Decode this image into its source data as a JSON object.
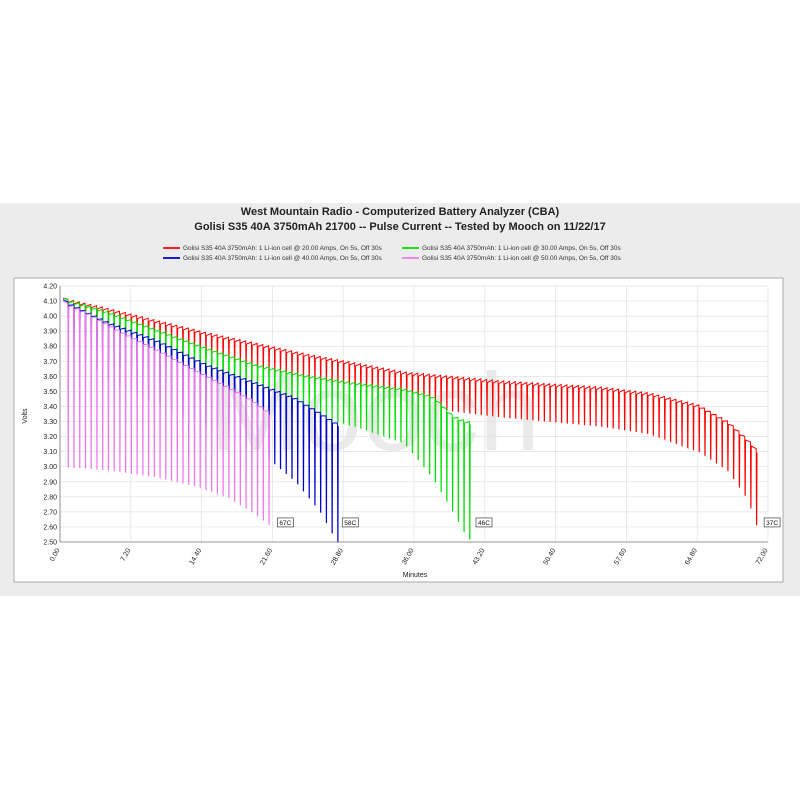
{
  "chart_data": {
    "type": "line",
    "title": "West Mountain Radio - Computerized Battery Analyzer (CBA)",
    "subtitle": "Golisi S35 40A 3750mAh 21700 -- Pulse Current -- Tested by Mooch on 11/22/17",
    "xlabel": "Minutes",
    "ylabel": "Volts",
    "xlim": [
      0,
      72
    ],
    "ylim": [
      2.5,
      4.2
    ],
    "x_ticks": [
      "0.00",
      "7.20",
      "14.40",
      "21.60",
      "28.80",
      "36.00",
      "43.20",
      "50.40",
      "57.60",
      "64.80",
      "72.00"
    ],
    "y_ticks": [
      "2.50",
      "2.60",
      "2.70",
      "2.80",
      "2.90",
      "3.00",
      "3.10",
      "3.20",
      "3.30",
      "3.40",
      "3.50",
      "3.60",
      "3.70",
      "3.80",
      "3.90",
      "4.00",
      "4.10",
      "4.20"
    ],
    "grid": true,
    "legend_position": "top",
    "watermark": "Mooch",
    "pulse": {
      "on_s": 5,
      "off_s": 30
    },
    "series": [
      {
        "name": "Golisi S35 40A 3750mAh: 1 Li-ion cell @ 20.00 Amps, On 5s, Off 30s",
        "color": "#ff0000",
        "end_label": "37C",
        "end_minute": 71.3,
        "rest_points": [
          [
            0.3,
            4.12
          ],
          [
            5,
            4.05
          ],
          [
            10,
            3.97
          ],
          [
            15,
            3.89
          ],
          [
            20,
            3.82
          ],
          [
            25,
            3.75
          ],
          [
            30,
            3.69
          ],
          [
            35,
            3.63
          ],
          [
            40,
            3.6
          ],
          [
            45,
            3.57
          ],
          [
            50,
            3.55
          ],
          [
            55,
            3.53
          ],
          [
            60,
            3.49
          ],
          [
            65,
            3.41
          ],
          [
            68,
            3.3
          ],
          [
            70,
            3.18
          ],
          [
            71.2,
            3.09
          ]
        ],
        "load_points": [
          [
            0.3,
            4.05
          ],
          [
            5,
            3.92
          ],
          [
            10,
            3.82
          ],
          [
            15,
            3.73
          ],
          [
            20,
            3.65
          ],
          [
            25,
            3.57
          ],
          [
            30,
            3.49
          ],
          [
            35,
            3.42
          ],
          [
            40,
            3.37
          ],
          [
            45,
            3.33
          ],
          [
            50,
            3.3
          ],
          [
            55,
            3.27
          ],
          [
            60,
            3.22
          ],
          [
            65,
            3.1
          ],
          [
            68,
            2.97
          ],
          [
            70,
            2.78
          ],
          [
            71.2,
            2.55
          ]
        ]
      },
      {
        "name": "Golisi S35 40A 3750mAh: 1 Li-ion cell @ 30.00 Amps, On 5s, Off 30s",
        "color": "#00e000",
        "end_label": "46C",
        "end_minute": 42.0,
        "rest_points": [
          [
            0.3,
            4.12
          ],
          [
            5,
            4.03
          ],
          [
            10,
            3.91
          ],
          [
            15,
            3.79
          ],
          [
            20,
            3.68
          ],
          [
            25,
            3.61
          ],
          [
            30,
            3.56
          ],
          [
            35,
            3.52
          ],
          [
            38,
            3.47
          ],
          [
            40,
            3.34
          ],
          [
            41.5,
            3.3
          ]
        ],
        "load_points": [
          [
            0.3,
            3.97
          ],
          [
            5,
            3.76
          ],
          [
            10,
            3.63
          ],
          [
            15,
            3.52
          ],
          [
            20,
            3.42
          ],
          [
            25,
            3.35
          ],
          [
            30,
            3.27
          ],
          [
            35,
            3.16
          ],
          [
            38,
            2.92
          ],
          [
            40,
            2.7
          ],
          [
            41.5,
            2.52
          ]
        ]
      },
      {
        "name": "Golisi S35 40A 3750mAh: 1 Li-ion cell @ 40.00 Amps, On 5s, Off 30s",
        "color": "#0000cc",
        "end_label": "58C",
        "end_minute": 28.4,
        "rest_points": [
          [
            0.3,
            4.11
          ],
          [
            5,
            3.96
          ],
          [
            10,
            3.84
          ],
          [
            15,
            3.68
          ],
          [
            20,
            3.56
          ],
          [
            24,
            3.46
          ],
          [
            26.5,
            3.36
          ],
          [
            28.2,
            3.29
          ]
        ],
        "load_points": [
          [
            0.3,
            3.86
          ],
          [
            5,
            3.56
          ],
          [
            10,
            3.41
          ],
          [
            15,
            3.27
          ],
          [
            20,
            3.12
          ],
          [
            24,
            2.9
          ],
          [
            26.5,
            2.7
          ],
          [
            28.2,
            2.5
          ]
        ]
      },
      {
        "name": "Golisi S35 40A 3750mAh: 1 Li-ion cell @ 50.00 Amps, On 5s, Off 30s",
        "color": "#ee77ee",
        "end_label": "67C",
        "end_minute": 21.8,
        "rest_points": [
          [
            0.3,
            4.1
          ],
          [
            3,
            4.02
          ],
          [
            6,
            3.91
          ],
          [
            10,
            3.78
          ],
          [
            14,
            3.64
          ],
          [
            17,
            3.54
          ],
          [
            19.5,
            3.45
          ],
          [
            21.6,
            3.35
          ]
        ],
        "load_points": [
          [
            0.3,
            3.0
          ],
          [
            3,
            2.99
          ],
          [
            6,
            2.97
          ],
          [
            10,
            2.93
          ],
          [
            14,
            2.87
          ],
          [
            17,
            2.8
          ],
          [
            19.5,
            2.7
          ],
          [
            21.6,
            2.6
          ]
        ]
      }
    ]
  }
}
